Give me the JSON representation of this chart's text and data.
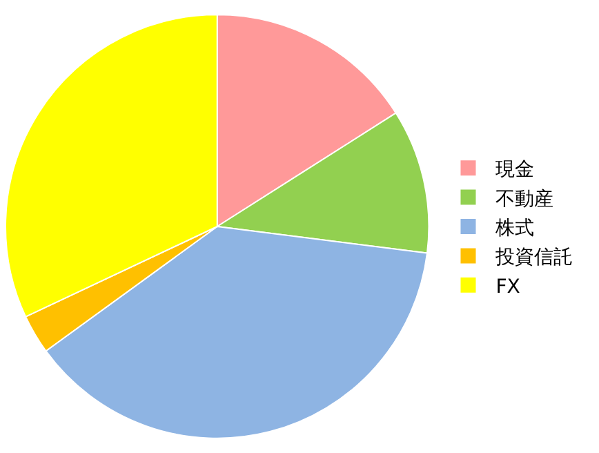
{
  "chart_data": {
    "type": "pie",
    "categories": [
      "現金",
      "不動産",
      "株式",
      "投資信託",
      "FX"
    ],
    "values": [
      16,
      11,
      38,
      3,
      32
    ],
    "colors": [
      "#ff9999",
      "#92d050",
      "#8eb4e3",
      "#ffc000",
      "#ffff00"
    ],
    "legend": "right"
  }
}
